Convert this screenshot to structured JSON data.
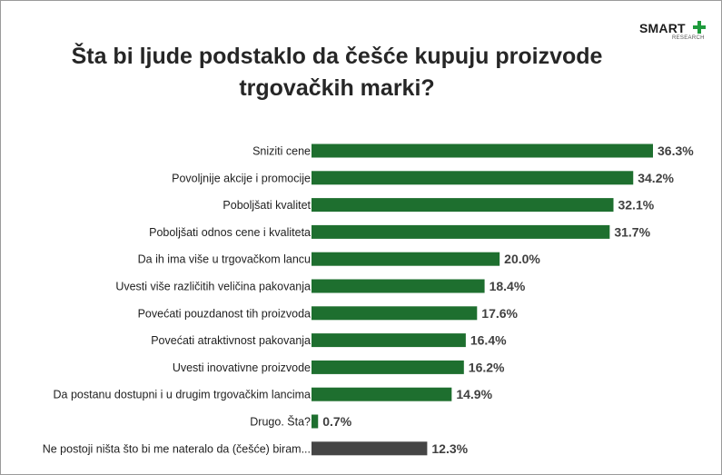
{
  "logo": {
    "word": "SMART",
    "sub": "RESEARCH"
  },
  "chart_data": {
    "type": "bar",
    "orientation": "horizontal",
    "title": "Šta bi ljude podstaklo da češće kupuju proizvode trgovačkih marki?",
    "title_lines": [
      "Šta bi ljude podstaklo da češće kupuju proizvode",
      "trgovačkih marki?"
    ],
    "xlabel": "",
    "ylabel": "",
    "xlim": [
      0,
      36.3
    ],
    "grid": false,
    "legend": "none",
    "colors": {
      "default": "#1e6f2f",
      "neutral": "#454545"
    },
    "categories": [
      "Sniziti cene",
      "Povoljnije akcije i promocije",
      "Poboljšati kvalitet",
      "Poboljšati odnos cene i kvaliteta",
      "Da ih ima više u trgovačkom lancu",
      "Uvesti više različitih veličina pakovanja",
      "Povećati pouzdanost tih proizvoda",
      "Povećati atraktivnost pakovanja",
      "Uvesti inovativne proizvode",
      "Da postanu dostupni i u drugim trgovačkim lancima",
      "Drugo. Šta?",
      "Ne postoji ništa što bi me nateralo da (češće) biram..."
    ],
    "values": [
      36.3,
      34.2,
      32.1,
      31.7,
      20.0,
      18.4,
      17.6,
      16.4,
      16.2,
      14.9,
      0.7,
      12.3
    ],
    "value_labels": [
      "36.3%",
      "34.2%",
      "32.1%",
      "31.7%",
      "20.0%",
      "18.4%",
      "17.6%",
      "16.4%",
      "16.2%",
      "14.9%",
      "0.7%",
      "12.3%"
    ],
    "bar_colors": [
      "#1e6f2f",
      "#1e6f2f",
      "#1e6f2f",
      "#1e6f2f",
      "#1e6f2f",
      "#1e6f2f",
      "#1e6f2f",
      "#1e6f2f",
      "#1e6f2f",
      "#1e6f2f",
      "#1e6f2f",
      "#454545"
    ]
  }
}
